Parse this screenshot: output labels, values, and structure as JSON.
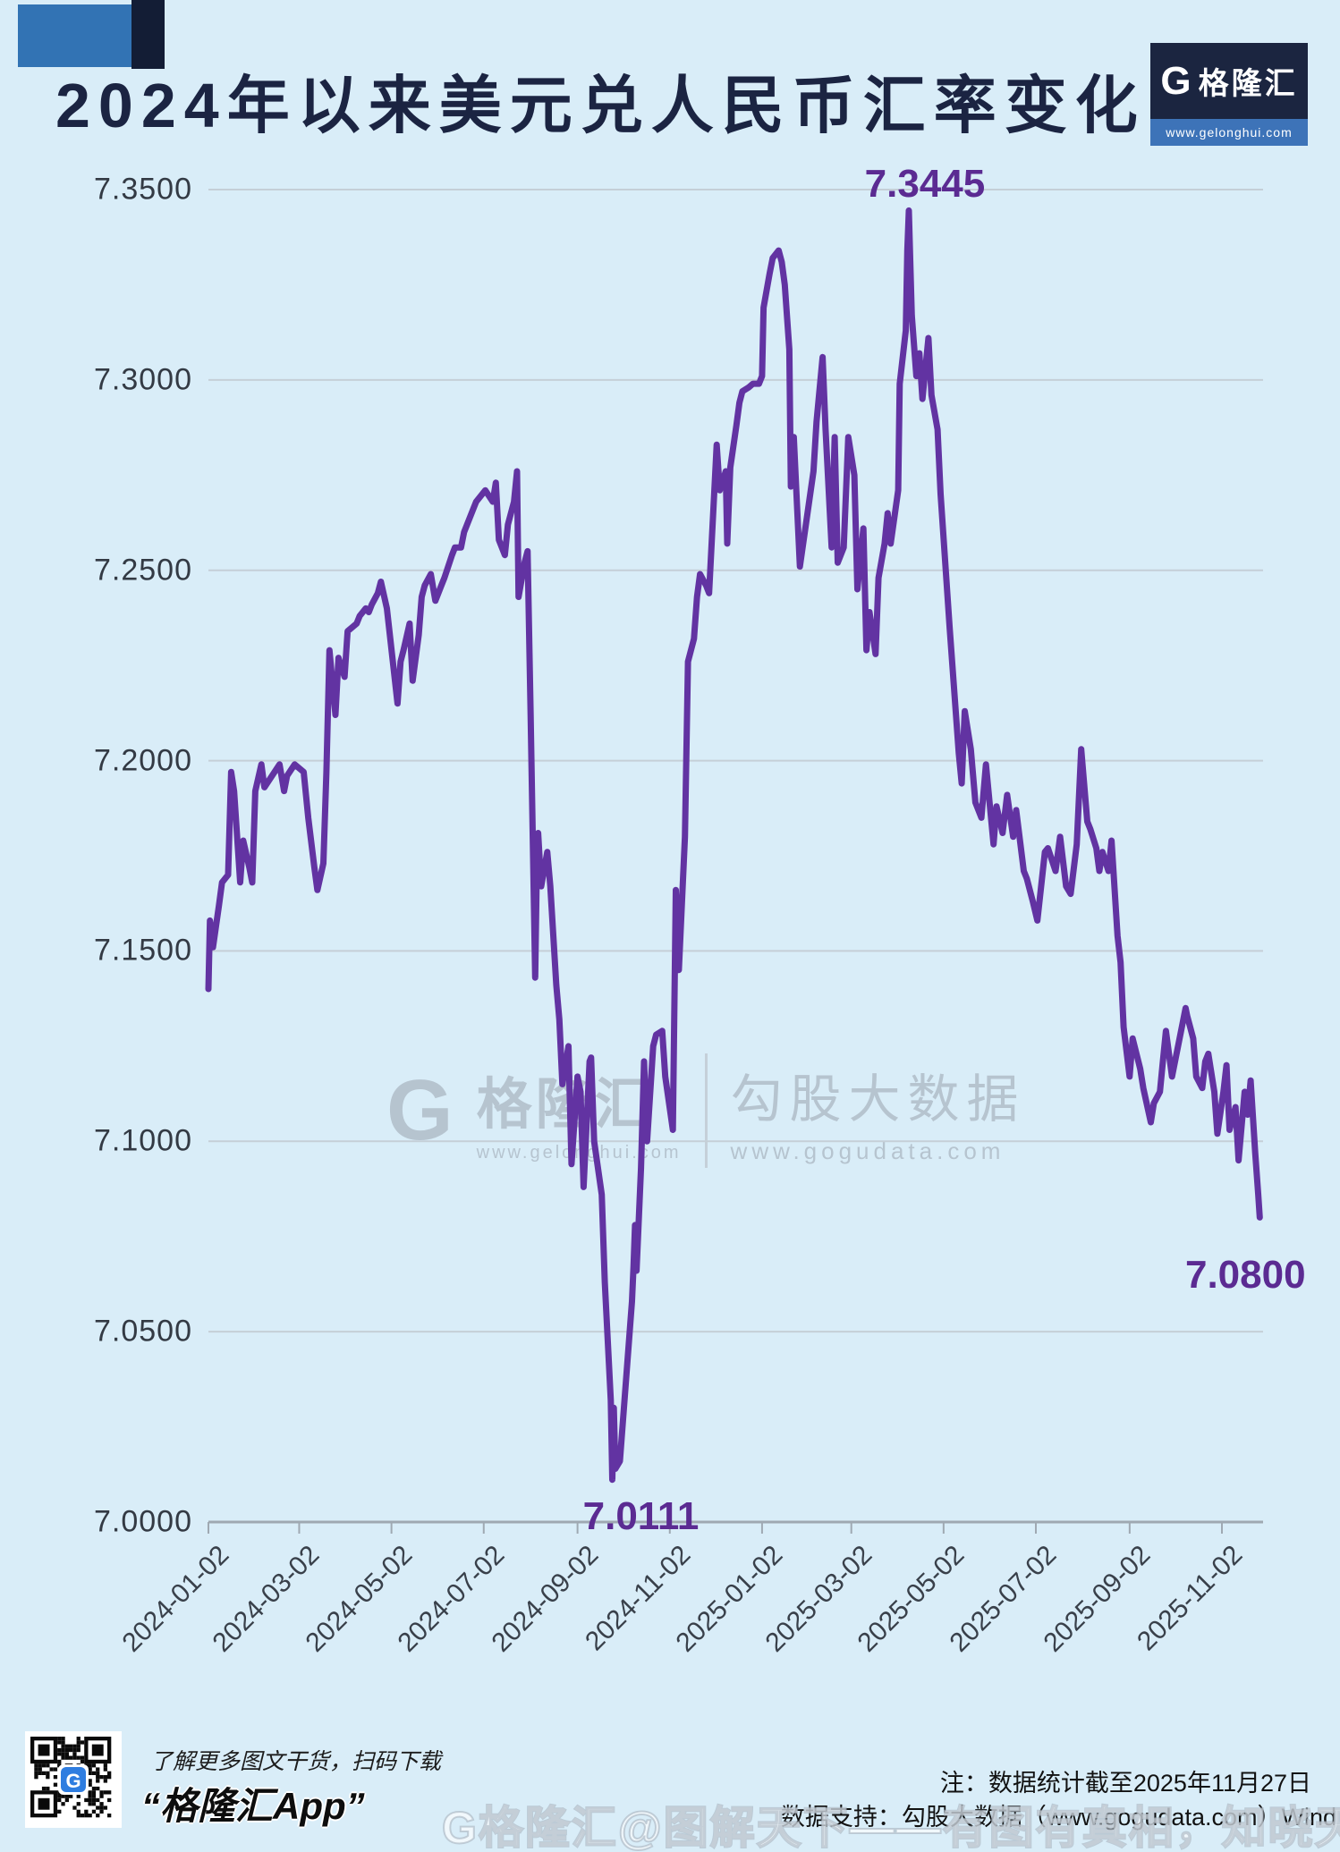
{
  "header": {
    "title": "2024年以来美元兑人民币汇率变化",
    "logo": {
      "g": "G",
      "brand": "格隆汇",
      "url": "www.gelonghui.com"
    }
  },
  "watermark_center": {
    "g": "G",
    "brand": "格隆汇",
    "brand_url": "www.gelonghui.com",
    "partner": "勾股大数据",
    "partner_url": "www.gogudata.com"
  },
  "watermark_bottom": {
    "text": "G格隆汇@图解天下——有图有真相，知晓天下事"
  },
  "footer": {
    "qr_caption_line1": "了解更多图文干货，扫码下载",
    "qr_caption_line2": "“格隆汇App”",
    "note": "注：数据统计截至2025年11月27日",
    "source": "数据支持：勾股大数据（www.gogudata.com）Wind"
  },
  "colors": {
    "background": "#d9edf8",
    "title": "#1b2442",
    "line": "#6233a2",
    "annotation": "#5b2b92",
    "grid": "#c5cfd7",
    "axis": "#9fa9b2",
    "deco_blue": "#3273b4",
    "deco_navy": "#131d35",
    "logo_navy": "#1b2540",
    "logo_blue": "#3d73b8",
    "watermark_gray": "#b0bdc9"
  },
  "chart_data": {
    "type": "line",
    "title": "2024年以来美元兑人民币汇率变化",
    "xlabel": "",
    "ylabel": "",
    "ylim": [
      7.0,
      7.35
    ],
    "grid": true,
    "legend_position": "none",
    "yticks": [
      "7.3500",
      "7.3000",
      "7.2500",
      "7.2000",
      "7.1500",
      "7.1000",
      "7.0500",
      "7.0000"
    ],
    "xticks": [
      "2024-01-02",
      "2024-03-02",
      "2024-05-02",
      "2024-07-02",
      "2024-09-02",
      "2024-11-02",
      "2025-01-02",
      "2025-03-02",
      "2025-05-02",
      "2025-07-02",
      "2025-09-02",
      "2025-11-02"
    ],
    "annotations": [
      {
        "text": "7.3445",
        "date": "2025-04-09",
        "value": 7.3445,
        "placement": "above"
      },
      {
        "text": "7.0111",
        "date": "2024-09-25",
        "value": 7.0111,
        "placement": "below"
      },
      {
        "text": "7.0800",
        "date": "2025-11-27",
        "value": 7.08,
        "placement": "below-left"
      }
    ],
    "series": [
      {
        "name": "USD/CNY",
        "points": [
          [
            "2024-01-02",
            7.14
          ],
          [
            "2024-01-03",
            7.158
          ],
          [
            "2024-01-05",
            7.151
          ],
          [
            "2024-01-09",
            7.162
          ],
          [
            "2024-01-11",
            7.168
          ],
          [
            "2024-01-15",
            7.17
          ],
          [
            "2024-01-17",
            7.197
          ],
          [
            "2024-01-19",
            7.192
          ],
          [
            "2024-01-23",
            7.168
          ],
          [
            "2024-01-25",
            7.179
          ],
          [
            "2024-01-29",
            7.172
          ],
          [
            "2024-01-31",
            7.168
          ],
          [
            "2024-02-02",
            7.192
          ],
          [
            "2024-02-06",
            7.199
          ],
          [
            "2024-02-08",
            7.193
          ],
          [
            "2024-02-18",
            7.199
          ],
          [
            "2024-02-21",
            7.192
          ],
          [
            "2024-02-23",
            7.196
          ],
          [
            "2024-02-28",
            7.199
          ],
          [
            "2024-03-05",
            7.197
          ],
          [
            "2024-03-08",
            7.185
          ],
          [
            "2024-03-12",
            7.172
          ],
          [
            "2024-03-14",
            7.166
          ],
          [
            "2024-03-18",
            7.173
          ],
          [
            "2024-03-20",
            7.197
          ],
          [
            "2024-03-22",
            7.229
          ],
          [
            "2024-03-26",
            7.212
          ],
          [
            "2024-03-28",
            7.227
          ],
          [
            "2024-04-01",
            7.222
          ],
          [
            "2024-04-03",
            7.234
          ],
          [
            "2024-04-09",
            7.236
          ],
          [
            "2024-04-11",
            7.238
          ],
          [
            "2024-04-15",
            7.24
          ],
          [
            "2024-04-17",
            7.239
          ],
          [
            "2024-04-19",
            7.241
          ],
          [
            "2024-04-23",
            7.244
          ],
          [
            "2024-04-25",
            7.247
          ],
          [
            "2024-04-29",
            7.24
          ],
          [
            "2024-05-06",
            7.215
          ],
          [
            "2024-05-08",
            7.226
          ],
          [
            "2024-05-10",
            7.229
          ],
          [
            "2024-05-14",
            7.236
          ],
          [
            "2024-05-16",
            7.221
          ],
          [
            "2024-05-20",
            7.233
          ],
          [
            "2024-05-22",
            7.243
          ],
          [
            "2024-05-24",
            7.246
          ],
          [
            "2024-05-28",
            7.249
          ],
          [
            "2024-05-31",
            7.242
          ],
          [
            "2024-06-04",
            7.246
          ],
          [
            "2024-06-06",
            7.248
          ],
          [
            "2024-06-11",
            7.254
          ],
          [
            "2024-06-13",
            7.256
          ],
          [
            "2024-06-17",
            7.256
          ],
          [
            "2024-06-19",
            7.26
          ],
          [
            "2024-06-25",
            7.266
          ],
          [
            "2024-06-27",
            7.268
          ],
          [
            "2024-07-01",
            7.27
          ],
          [
            "2024-07-03",
            7.271
          ],
          [
            "2024-07-08",
            7.268
          ],
          [
            "2024-07-10",
            7.273
          ],
          [
            "2024-07-12",
            7.258
          ],
          [
            "2024-07-16",
            7.254
          ],
          [
            "2024-07-18",
            7.262
          ],
          [
            "2024-07-22",
            7.268
          ],
          [
            "2024-07-24",
            7.276
          ],
          [
            "2024-07-25",
            7.243
          ],
          [
            "2024-07-29",
            7.252
          ],
          [
            "2024-07-31",
            7.255
          ],
          [
            "2024-08-02",
            7.212
          ],
          [
            "2024-08-05",
            7.143
          ],
          [
            "2024-08-06",
            7.17
          ],
          [
            "2024-08-07",
            7.181
          ],
          [
            "2024-08-09",
            7.167
          ],
          [
            "2024-08-13",
            7.176
          ],
          [
            "2024-08-15",
            7.167
          ],
          [
            "2024-08-19",
            7.141
          ],
          [
            "2024-08-21",
            7.132
          ],
          [
            "2024-08-23",
            7.115
          ],
          [
            "2024-08-27",
            7.125
          ],
          [
            "2024-08-29",
            7.094
          ],
          [
            "2024-09-02",
            7.117
          ],
          [
            "2024-09-04",
            7.113
          ],
          [
            "2024-09-06",
            7.088
          ],
          [
            "2024-09-10",
            7.121
          ],
          [
            "2024-09-11",
            7.122
          ],
          [
            "2024-09-13",
            7.1
          ],
          [
            "2024-09-18",
            7.086
          ],
          [
            "2024-09-20",
            7.063
          ],
          [
            "2024-09-24",
            7.032
          ],
          [
            "2024-09-25",
            7.0111
          ],
          [
            "2024-09-26",
            7.03
          ],
          [
            "2024-09-27",
            7.014
          ],
          [
            "2024-09-30",
            7.016
          ],
          [
            "2024-10-08",
            7.058
          ],
          [
            "2024-10-09",
            7.067
          ],
          [
            "2024-10-10",
            7.078
          ],
          [
            "2024-10-11",
            7.066
          ],
          [
            "2024-10-14",
            7.093
          ],
          [
            "2024-10-16",
            7.121
          ],
          [
            "2024-10-18",
            7.1
          ],
          [
            "2024-10-22",
            7.125
          ],
          [
            "2024-10-24",
            7.128
          ],
          [
            "2024-10-28",
            7.129
          ],
          [
            "2024-10-30",
            7.117
          ],
          [
            "2024-11-04",
            7.103
          ],
          [
            "2024-11-06",
            7.166
          ],
          [
            "2024-11-08",
            7.145
          ],
          [
            "2024-11-12",
            7.18
          ],
          [
            "2024-11-14",
            7.226
          ],
          [
            "2024-11-18",
            7.232
          ],
          [
            "2024-11-20",
            7.243
          ],
          [
            "2024-11-22",
            7.249
          ],
          [
            "2024-11-26",
            7.246
          ],
          [
            "2024-11-28",
            7.244
          ],
          [
            "2024-12-03",
            7.283
          ],
          [
            "2024-12-05",
            7.271
          ],
          [
            "2024-12-09",
            7.276
          ],
          [
            "2024-12-10",
            7.257
          ],
          [
            "2024-12-12",
            7.277
          ],
          [
            "2024-12-16",
            7.288
          ],
          [
            "2024-12-18",
            7.294
          ],
          [
            "2024-12-20",
            7.297
          ],
          [
            "2024-12-24",
            7.298
          ],
          [
            "2024-12-27",
            7.299
          ],
          [
            "2024-12-31",
            7.299
          ],
          [
            "2025-01-02",
            7.301
          ],
          [
            "2025-01-03",
            7.319
          ],
          [
            "2025-01-07",
            7.328
          ],
          [
            "2025-01-09",
            7.332
          ],
          [
            "2025-01-13",
            7.334
          ],
          [
            "2025-01-15",
            7.331
          ],
          [
            "2025-01-17",
            7.325
          ],
          [
            "2025-01-20",
            7.308
          ],
          [
            "2025-01-21",
            7.272
          ],
          [
            "2025-01-23",
            7.285
          ],
          [
            "2025-01-27",
            7.251
          ],
          [
            "2025-02-05",
            7.276
          ],
          [
            "2025-02-07",
            7.289
          ],
          [
            "2025-02-11",
            7.306
          ],
          [
            "2025-02-13",
            7.287
          ],
          [
            "2025-02-17",
            7.256
          ],
          [
            "2025-02-19",
            7.285
          ],
          [
            "2025-02-21",
            7.252
          ],
          [
            "2025-02-25",
            7.256
          ],
          [
            "2025-02-28",
            7.285
          ],
          [
            "2025-03-04",
            7.275
          ],
          [
            "2025-03-06",
            7.245
          ],
          [
            "2025-03-10",
            7.261
          ],
          [
            "2025-03-12",
            7.229
          ],
          [
            "2025-03-14",
            7.239
          ],
          [
            "2025-03-18",
            7.228
          ],
          [
            "2025-03-20",
            7.248
          ],
          [
            "2025-03-24",
            7.257
          ],
          [
            "2025-03-26",
            7.265
          ],
          [
            "2025-03-28",
            7.257
          ],
          [
            "2025-04-02",
            7.271
          ],
          [
            "2025-04-03",
            7.299
          ],
          [
            "2025-04-07",
            7.313
          ],
          [
            "2025-04-08",
            7.334
          ],
          [
            "2025-04-09",
            7.3445
          ],
          [
            "2025-04-10",
            7.331
          ],
          [
            "2025-04-11",
            7.317
          ],
          [
            "2025-04-14",
            7.301
          ],
          [
            "2025-04-16",
            7.307
          ],
          [
            "2025-04-18",
            7.295
          ],
          [
            "2025-04-22",
            7.311
          ],
          [
            "2025-04-24",
            7.296
          ],
          [
            "2025-04-28",
            7.287
          ],
          [
            "2025-04-30",
            7.27
          ],
          [
            "2025-05-06",
            7.235
          ],
          [
            "2025-05-08",
            7.224
          ],
          [
            "2025-05-12",
            7.202
          ],
          [
            "2025-05-14",
            7.194
          ],
          [
            "2025-05-16",
            7.213
          ],
          [
            "2025-05-20",
            7.203
          ],
          [
            "2025-05-23",
            7.189
          ],
          [
            "2025-05-27",
            7.185
          ],
          [
            "2025-05-30",
            7.199
          ],
          [
            "2025-06-04",
            7.178
          ],
          [
            "2025-06-06",
            7.188
          ],
          [
            "2025-06-10",
            7.181
          ],
          [
            "2025-06-13",
            7.191
          ],
          [
            "2025-06-17",
            7.18
          ],
          [
            "2025-06-19",
            7.187
          ],
          [
            "2025-06-24",
            7.171
          ],
          [
            "2025-06-26",
            7.169
          ],
          [
            "2025-06-30",
            7.163
          ],
          [
            "2025-07-03",
            7.158
          ],
          [
            "2025-07-08",
            7.176
          ],
          [
            "2025-07-10",
            7.177
          ],
          [
            "2025-07-15",
            7.171
          ],
          [
            "2025-07-18",
            7.18
          ],
          [
            "2025-07-22",
            7.167
          ],
          [
            "2025-07-25",
            7.165
          ],
          [
            "2025-07-29",
            7.178
          ],
          [
            "2025-08-01",
            7.203
          ],
          [
            "2025-08-05",
            7.184
          ],
          [
            "2025-08-07",
            7.182
          ],
          [
            "2025-08-11",
            7.177
          ],
          [
            "2025-08-13",
            7.171
          ],
          [
            "2025-08-15",
            7.176
          ],
          [
            "2025-08-19",
            7.171
          ],
          [
            "2025-08-21",
            7.179
          ],
          [
            "2025-08-25",
            7.154
          ],
          [
            "2025-08-27",
            7.147
          ],
          [
            "2025-08-29",
            7.13
          ],
          [
            "2025-09-02",
            7.117
          ],
          [
            "2025-09-04",
            7.127
          ],
          [
            "2025-09-09",
            7.119
          ],
          [
            "2025-09-11",
            7.114
          ],
          [
            "2025-09-16",
            7.105
          ],
          [
            "2025-09-18",
            7.11
          ],
          [
            "2025-09-22",
            7.113
          ],
          [
            "2025-09-24",
            7.121
          ],
          [
            "2025-09-26",
            7.129
          ],
          [
            "2025-09-30",
            7.117
          ],
          [
            "2025-10-09",
            7.135
          ],
          [
            "2025-10-10",
            7.133
          ],
          [
            "2025-10-14",
            7.127
          ],
          [
            "2025-10-16",
            7.117
          ],
          [
            "2025-10-20",
            7.114
          ],
          [
            "2025-10-22",
            7.121
          ],
          [
            "2025-10-24",
            7.123
          ],
          [
            "2025-10-28",
            7.113
          ],
          [
            "2025-10-30",
            7.102
          ],
          [
            "2025-11-03",
            7.113
          ],
          [
            "2025-11-05",
            7.12
          ],
          [
            "2025-11-07",
            7.103
          ],
          [
            "2025-11-11",
            7.109
          ],
          [
            "2025-11-13",
            7.095
          ],
          [
            "2025-11-17",
            7.113
          ],
          [
            "2025-11-19",
            7.107
          ],
          [
            "2025-11-21",
            7.116
          ],
          [
            "2025-11-24",
            7.097
          ],
          [
            "2025-11-26",
            7.086
          ],
          [
            "2025-11-27",
            7.08
          ]
        ]
      }
    ]
  }
}
